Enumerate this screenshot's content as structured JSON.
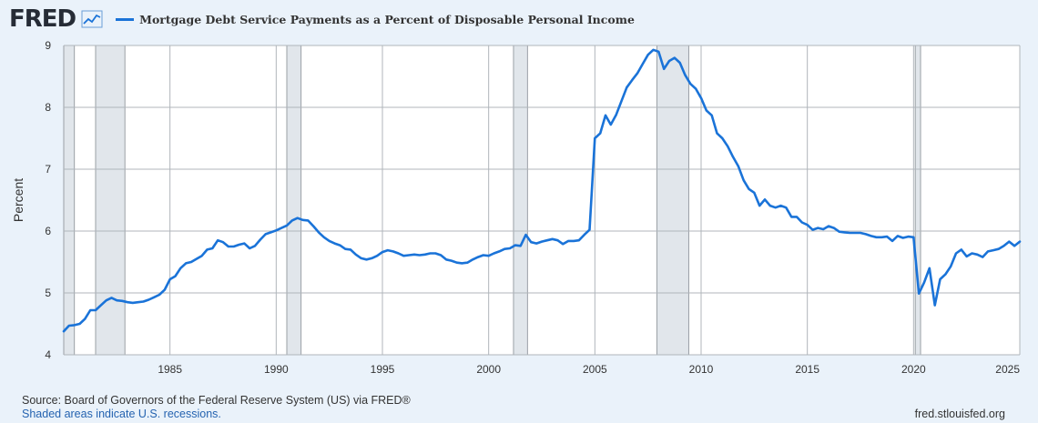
{
  "header": {
    "logo_text": "FRED",
    "logo_icon": "trend-chart-icon",
    "legend_label": "Mortgage Debt Service Payments as a Percent of Disposable Personal Income"
  },
  "footer": {
    "source": "Source: Board of Governors of the Federal Reserve System (US) via FRED®",
    "note": "Shaded areas indicate U.S. recessions.",
    "url": "fred.stlouisfed.org"
  },
  "colors": {
    "background": "#eaf2fa",
    "plot_background": "#ffffff",
    "line": "#1a73d8",
    "recession": "#e1e6eb",
    "grid": "#b0b5bb"
  },
  "chart_data": {
    "type": "line",
    "title": "Mortgage Debt Service Payments as a Percent of Disposable Personal Income",
    "xlabel": "",
    "ylabel": "Percent",
    "xlim": [
      1980,
      2025
    ],
    "ylim": [
      4,
      9
    ],
    "x_ticks": [
      1985,
      1990,
      1995,
      2000,
      2005,
      2010,
      2015,
      2020,
      2025
    ],
    "y_ticks": [
      4,
      5,
      6,
      7,
      8,
      9
    ],
    "grid": true,
    "recessions": [
      [
        1980.0,
        1980.5
      ],
      [
        1981.5,
        1982.88
      ],
      [
        1990.5,
        1991.17
      ],
      [
        2001.17,
        2001.83
      ],
      [
        2007.92,
        2009.42
      ],
      [
        2020.08,
        2020.33
      ]
    ],
    "series": [
      {
        "name": "Mortgage Debt Service Payments as a Percent of Disposable Personal Income",
        "points": [
          [
            1980.0,
            4.38
          ],
          [
            1980.25,
            4.47
          ],
          [
            1980.5,
            4.48
          ],
          [
            1980.75,
            4.5
          ],
          [
            1981.0,
            4.58
          ],
          [
            1981.25,
            4.72
          ],
          [
            1981.5,
            4.72
          ],
          [
            1981.75,
            4.8
          ],
          [
            1982.0,
            4.88
          ],
          [
            1982.25,
            4.92
          ],
          [
            1982.5,
            4.88
          ],
          [
            1982.75,
            4.87
          ],
          [
            1983.0,
            4.85
          ],
          [
            1983.25,
            4.84
          ],
          [
            1983.5,
            4.85
          ],
          [
            1983.75,
            4.86
          ],
          [
            1984.0,
            4.89
          ],
          [
            1984.25,
            4.93
          ],
          [
            1984.5,
            4.97
          ],
          [
            1984.75,
            5.05
          ],
          [
            1985.0,
            5.22
          ],
          [
            1985.25,
            5.27
          ],
          [
            1985.5,
            5.4
          ],
          [
            1985.75,
            5.48
          ],
          [
            1986.0,
            5.5
          ],
          [
            1986.25,
            5.55
          ],
          [
            1986.5,
            5.6
          ],
          [
            1986.75,
            5.7
          ],
          [
            1987.0,
            5.72
          ],
          [
            1987.25,
            5.85
          ],
          [
            1987.5,
            5.82
          ],
          [
            1987.75,
            5.75
          ],
          [
            1988.0,
            5.75
          ],
          [
            1988.25,
            5.78
          ],
          [
            1988.5,
            5.8
          ],
          [
            1988.75,
            5.72
          ],
          [
            1989.0,
            5.76
          ],
          [
            1989.25,
            5.86
          ],
          [
            1989.5,
            5.95
          ],
          [
            1989.75,
            5.98
          ],
          [
            1990.0,
            6.01
          ],
          [
            1990.25,
            6.05
          ],
          [
            1990.5,
            6.09
          ],
          [
            1990.75,
            6.17
          ],
          [
            1991.0,
            6.21
          ],
          [
            1991.25,
            6.18
          ],
          [
            1991.5,
            6.17
          ],
          [
            1991.75,
            6.08
          ],
          [
            1992.0,
            5.98
          ],
          [
            1992.25,
            5.9
          ],
          [
            1992.5,
            5.84
          ],
          [
            1992.75,
            5.8
          ],
          [
            1993.0,
            5.77
          ],
          [
            1993.25,
            5.71
          ],
          [
            1993.5,
            5.7
          ],
          [
            1993.75,
            5.62
          ],
          [
            1994.0,
            5.56
          ],
          [
            1994.25,
            5.54
          ],
          [
            1994.5,
            5.56
          ],
          [
            1994.75,
            5.6
          ],
          [
            1995.0,
            5.66
          ],
          [
            1995.25,
            5.69
          ],
          [
            1995.5,
            5.67
          ],
          [
            1995.75,
            5.64
          ],
          [
            1996.0,
            5.6
          ],
          [
            1996.25,
            5.61
          ],
          [
            1996.5,
            5.62
          ],
          [
            1996.75,
            5.61
          ],
          [
            1997.0,
            5.62
          ],
          [
            1997.25,
            5.64
          ],
          [
            1997.5,
            5.64
          ],
          [
            1997.75,
            5.61
          ],
          [
            1998.0,
            5.54
          ],
          [
            1998.25,
            5.52
          ],
          [
            1998.5,
            5.49
          ],
          [
            1998.75,
            5.48
          ],
          [
            1999.0,
            5.49
          ],
          [
            1999.25,
            5.54
          ],
          [
            1999.5,
            5.58
          ],
          [
            1999.75,
            5.61
          ],
          [
            2000.0,
            5.6
          ],
          [
            2000.25,
            5.64
          ],
          [
            2000.5,
            5.67
          ],
          [
            2000.75,
            5.71
          ],
          [
            2001.0,
            5.72
          ],
          [
            2001.25,
            5.77
          ],
          [
            2001.5,
            5.76
          ],
          [
            2001.75,
            5.94
          ],
          [
            2002.0,
            5.82
          ],
          [
            2002.25,
            5.8
          ],
          [
            2002.5,
            5.83
          ],
          [
            2002.75,
            5.85
          ],
          [
            2003.0,
            5.87
          ],
          [
            2003.25,
            5.85
          ],
          [
            2003.5,
            5.79
          ],
          [
            2003.75,
            5.84
          ],
          [
            2004.0,
            5.84
          ],
          [
            2004.25,
            5.85
          ],
          [
            2004.5,
            5.94
          ],
          [
            2004.75,
            6.02
          ],
          [
            2005.0,
            7.5
          ],
          [
            2005.25,
            7.58
          ],
          [
            2005.5,
            7.87
          ],
          [
            2005.75,
            7.72
          ],
          [
            2006.0,
            7.88
          ],
          [
            2006.25,
            8.1
          ],
          [
            2006.5,
            8.32
          ],
          [
            2006.75,
            8.44
          ],
          [
            2007.0,
            8.55
          ],
          [
            2007.25,
            8.7
          ],
          [
            2007.5,
            8.85
          ],
          [
            2007.75,
            8.93
          ],
          [
            2008.0,
            8.9
          ],
          [
            2008.25,
            8.62
          ],
          [
            2008.5,
            8.75
          ],
          [
            2008.75,
            8.8
          ],
          [
            2009.0,
            8.72
          ],
          [
            2009.25,
            8.52
          ],
          [
            2009.5,
            8.38
          ],
          [
            2009.75,
            8.3
          ],
          [
            2010.0,
            8.15
          ],
          [
            2010.25,
            7.95
          ],
          [
            2010.5,
            7.87
          ],
          [
            2010.75,
            7.58
          ],
          [
            2011.0,
            7.5
          ],
          [
            2011.25,
            7.37
          ],
          [
            2011.5,
            7.2
          ],
          [
            2011.75,
            7.05
          ],
          [
            2012.0,
            6.82
          ],
          [
            2012.25,
            6.68
          ],
          [
            2012.5,
            6.62
          ],
          [
            2012.75,
            6.41
          ],
          [
            2013.0,
            6.51
          ],
          [
            2013.25,
            6.41
          ],
          [
            2013.5,
            6.38
          ],
          [
            2013.75,
            6.41
          ],
          [
            2014.0,
            6.38
          ],
          [
            2014.25,
            6.23
          ],
          [
            2014.5,
            6.23
          ],
          [
            2014.75,
            6.14
          ],
          [
            2015.0,
            6.1
          ],
          [
            2015.25,
            6.02
          ],
          [
            2015.5,
            6.05
          ],
          [
            2015.75,
            6.03
          ],
          [
            2016.0,
            6.08
          ],
          [
            2016.25,
            6.05
          ],
          [
            2016.5,
            5.99
          ],
          [
            2016.75,
            5.98
          ],
          [
            2017.0,
            5.97
          ],
          [
            2017.25,
            5.97
          ],
          [
            2017.5,
            5.97
          ],
          [
            2017.75,
            5.95
          ],
          [
            2018.0,
            5.92
          ],
          [
            2018.25,
            5.9
          ],
          [
            2018.5,
            5.9
          ],
          [
            2018.75,
            5.91
          ],
          [
            2019.0,
            5.84
          ],
          [
            2019.25,
            5.92
          ],
          [
            2019.5,
            5.89
          ],
          [
            2019.75,
            5.91
          ],
          [
            2020.0,
            5.9
          ],
          [
            2020.25,
            4.99
          ],
          [
            2020.5,
            5.17
          ],
          [
            2020.75,
            5.4
          ],
          [
            2021.0,
            4.8
          ],
          [
            2021.25,
            5.22
          ],
          [
            2021.5,
            5.3
          ],
          [
            2021.75,
            5.43
          ],
          [
            2022.0,
            5.64
          ],
          [
            2022.25,
            5.7
          ],
          [
            2022.5,
            5.59
          ],
          [
            2022.75,
            5.64
          ],
          [
            2023.0,
            5.62
          ],
          [
            2023.25,
            5.58
          ],
          [
            2023.5,
            5.67
          ],
          [
            2023.75,
            5.69
          ],
          [
            2024.0,
            5.71
          ],
          [
            2024.25,
            5.76
          ],
          [
            2024.5,
            5.83
          ],
          [
            2024.75,
            5.76
          ],
          [
            2025.0,
            5.83
          ]
        ]
      }
    ]
  }
}
